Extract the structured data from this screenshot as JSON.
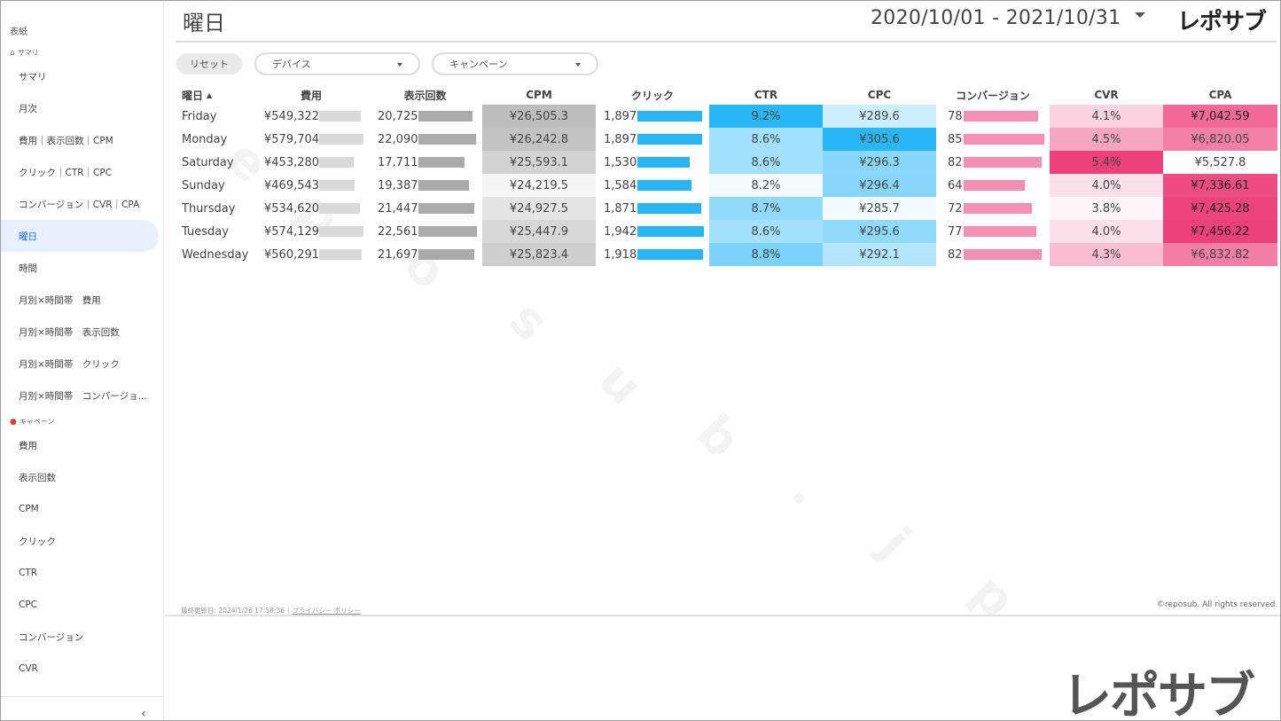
{
  "sidebar": {
    "top_label": "表紙",
    "section_summary": "サマリ",
    "section_campaign": "キャペーン",
    "items_summary": [
      "サマリ",
      "月次",
      "費用｜表示回数｜CPM",
      "クリック｜CTR｜CPC",
      "コンバージョン｜CVR｜CPA",
      "曜日",
      "時間",
      "月別×時間帯　費用",
      "月別×時間帯　表示回数",
      "月別×時間帯　クリック",
      "月別×時間帯　コンバージョ..."
    ],
    "items_campaign": [
      "費用",
      "表示回数",
      "CPM",
      "クリック",
      "CTR",
      "CPC",
      "コンバージョン",
      "CVR"
    ],
    "collapse_icon": "‹"
  },
  "header": {
    "title": "曜日",
    "date_range": "2020/10/01 - 2021/10/31",
    "logo": "レポサブ"
  },
  "filters": {
    "reset_label": "リセット",
    "device_label": "デバイス",
    "campaign_label": "キャンペーン"
  },
  "table": {
    "headers": {
      "day": "曜日",
      "cost": "費用",
      "impressions": "表示回数",
      "cpm": "CPM",
      "clicks": "クリック",
      "ctr": "CTR",
      "cpc": "CPC",
      "conversions": "コンバージョン",
      "cvr": "CVR",
      "cpa": "CPA"
    },
    "sort_indicator": "▲",
    "rows": [
      {
        "day": "Friday",
        "cost": "¥549,322",
        "cost_v": 549322,
        "impressions": "20,725",
        "imp_v": 20725,
        "cpm": "¥26,505.3",
        "clicks": "1,897",
        "clk_v": 1897,
        "ctr": "9.2%",
        "cpc": "¥289.6",
        "conversions": "78",
        "conv_v": 78,
        "cvr": "4.1%",
        "cpa": "¥7,042.59"
      },
      {
        "day": "Monday",
        "cost": "¥579,704",
        "cost_v": 579704,
        "impressions": "22,090",
        "imp_v": 22090,
        "cpm": "¥26,242.8",
        "clicks": "1,897",
        "clk_v": 1897,
        "ctr": "8.6%",
        "cpc": "¥305.6",
        "conversions": "85",
        "conv_v": 85,
        "cvr": "4.5%",
        "cpa": "¥6,820.05"
      },
      {
        "day": "Saturday",
        "cost": "¥453,280",
        "cost_v": 453280,
        "impressions": "17,711",
        "imp_v": 17711,
        "cpm": "¥25,593.1",
        "clicks": "1,530",
        "clk_v": 1530,
        "ctr": "8.6%",
        "cpc": "¥296.3",
        "conversions": "82",
        "conv_v": 82,
        "cvr": "5.4%",
        "cpa": "¥5,527.8"
      },
      {
        "day": "Sunday",
        "cost": "¥469,543",
        "cost_v": 469543,
        "impressions": "19,387",
        "imp_v": 19387,
        "cpm": "¥24,219.5",
        "clicks": "1,584",
        "clk_v": 1584,
        "ctr": "8.2%",
        "cpc": "¥296.4",
        "conversions": "64",
        "conv_v": 64,
        "cvr": "4.0%",
        "cpa": "¥7,336.61"
      },
      {
        "day": "Thursday",
        "cost": "¥534,620",
        "cost_v": 534620,
        "impressions": "21,447",
        "imp_v": 21447,
        "cpm": "¥24,927.5",
        "clicks": "1,871",
        "clk_v": 1871,
        "ctr": "8.7%",
        "cpc": "¥285.7",
        "conversions": "72",
        "conv_v": 72,
        "cvr": "3.8%",
        "cpa": "¥7,425.28"
      },
      {
        "day": "Tuesday",
        "cost": "¥574,129",
        "cost_v": 574129,
        "impressions": "22,561",
        "imp_v": 22561,
        "cpm": "¥25,447.9",
        "clicks": "1,942",
        "clk_v": 1942,
        "ctr": "8.6%",
        "cpc": "¥295.6",
        "conversions": "77",
        "conv_v": 77,
        "cvr": "4.0%",
        "cpa": "¥7,456.22"
      },
      {
        "day": "Wednesday",
        "cost": "¥560,291",
        "cost_v": 560291,
        "impressions": "21,697",
        "imp_v": 21697,
        "cpm": "¥25,823.4",
        "clicks": "1,918",
        "clk_v": 1918,
        "ctr": "8.8%",
        "cpc": "¥292.1",
        "conversions": "82",
        "conv_v": 82,
        "cvr": "4.3%",
        "cpa": "¥6,832.82"
      }
    ]
  },
  "colors": {
    "cost_bar": "#d9d9d9",
    "imp_bar": "#aaaaaa",
    "click_bar": "#29b6f6",
    "conv_bar": "#f48fb1",
    "blue_heat": "#29b6f6",
    "pink_heat": "#ec407a",
    "gray_heat": "#9e9e9e",
    "active_nav": "#1a73e8"
  },
  "footer": {
    "updated": "最終更新日: 2024/1/26 17:58:36",
    "privacy": "プライバシー ポリシー",
    "copyright": "©reposub. All rights reserved.",
    "logo": "レポサブ"
  }
}
